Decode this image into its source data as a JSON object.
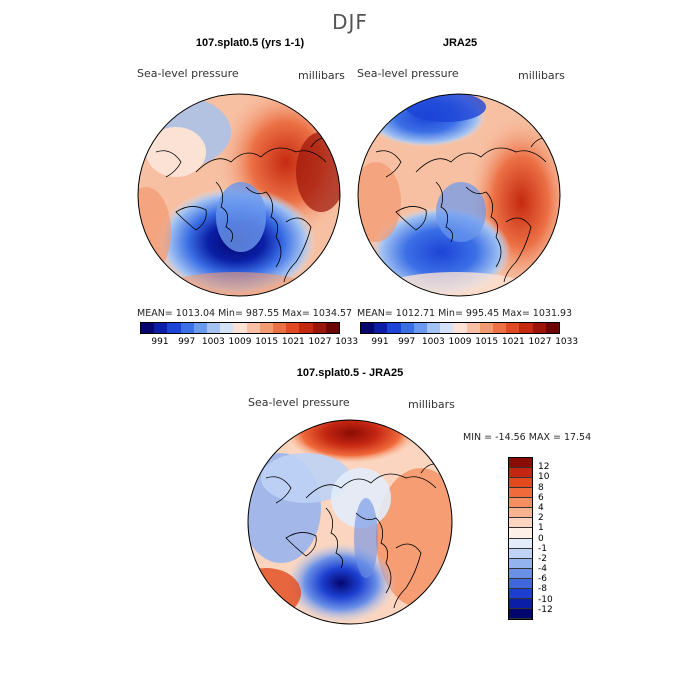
{
  "season": "DJF",
  "panels": [
    {
      "title": "107.splat0.5 (yrs 1-1)",
      "left_label": "Sea-level pressure",
      "right_label": "millibars",
      "stats": "MEAN= 1013.04   Min= 987.55   Max= 1034.57"
    },
    {
      "title": "JRA25",
      "left_label": "Sea-level pressure",
      "right_label": "millibars",
      "stats": "MEAN= 1012.71   Min= 995.45   Max= 1031.93"
    }
  ],
  "field_colorbar": {
    "colors": [
      "#06066e",
      "#0a1fa6",
      "#1c44d6",
      "#3b6fe6",
      "#6b99ee",
      "#a2c2f2",
      "#d3e2f7",
      "#fbe2d4",
      "#f7c0a2",
      "#f29a72",
      "#ec7045",
      "#e04a22",
      "#c52a10",
      "#9c1408",
      "#6c0604"
    ],
    "labels": [
      "991",
      "997",
      "1003",
      "1009",
      "1015",
      "1021",
      "1027",
      "1033"
    ]
  },
  "diff": {
    "title": "107.splat0.5 - JRA25",
    "left_label": "Sea-level pressure",
    "right_label": "millibars",
    "stats": "MIN = -14.56  MAX =  17.54",
    "colorbar_colors": [
      "#8a0c04",
      "#c42612",
      "#e24a1e",
      "#f06a3a",
      "#f58f62",
      "#f8b491",
      "#fbd5bf",
      "#fdf0e6",
      "#e2ecfa",
      "#bed3f5",
      "#93b3ee",
      "#6a8fe6",
      "#4067dc",
      "#1c3fd0",
      "#0a1ea8",
      "#040670"
    ],
    "colorbar_labels": [
      "12",
      "10",
      "8",
      "6",
      "4",
      "2",
      "1",
      "0",
      "-1",
      "-2",
      "-4",
      "-6",
      "-8",
      "-10",
      "-12"
    ]
  }
}
